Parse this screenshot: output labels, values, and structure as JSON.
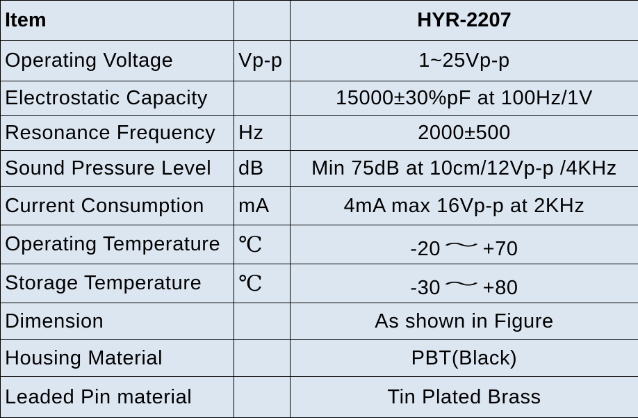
{
  "table": {
    "header": {
      "item": "Item",
      "unit": "",
      "value": "HYR-2207"
    },
    "rows": [
      {
        "item": "Operating Voltage",
        "unit": "Vp-p",
        "value": "1~25Vp-p"
      },
      {
        "item": "Electrostatic Capacity",
        "unit": "",
        "value": "15000±30%pF at 100Hz/1V"
      },
      {
        "item": "Resonance Frequency",
        "unit": "Hz",
        "value": "2000±500"
      },
      {
        "item": "Sound Pressure Level",
        "unit": "dB",
        "value": "Min 75dB at 10cm/12Vp-p /4KHz"
      },
      {
        "item": "Current Consumption",
        "unit": "mA",
        "value": "4mA max 16Vp-p at 2KHz"
      },
      {
        "item": "Operating Temperature",
        "unit": "℃",
        "value_from": "-20",
        "value_sep": "～",
        "value_to": "+70"
      },
      {
        "item": "Storage Temperature",
        "unit": "℃",
        "value_from": "-30",
        "value_sep": "～",
        "value_to": "+80"
      },
      {
        "item": "Dimension",
        "unit": "",
        "value": "As shown in Figure"
      },
      {
        "item": "Housing Material",
        "unit": "",
        "value": "PBT(Black)"
      },
      {
        "item": "Leaded Pin material",
        "unit": "",
        "value": "Tin Plated Brass"
      }
    ]
  }
}
